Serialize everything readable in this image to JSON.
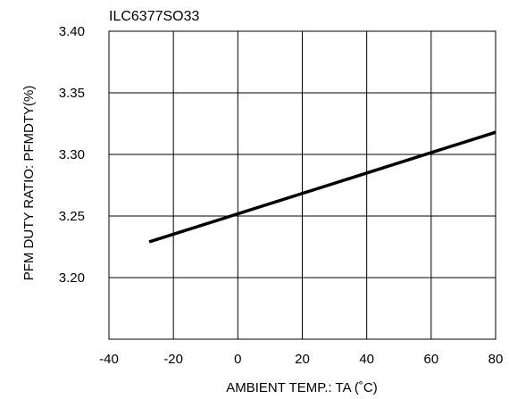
{
  "chart_data": {
    "type": "line",
    "title": "ILC6377SO33",
    "xlabel": "AMBIENT TEMP.: TA (˚C)",
    "ylabel": "PFM DUTY RATIO: PFMDTY(%)",
    "xlim": [
      -40,
      80
    ],
    "ylim": [
      3.15,
      3.4
    ],
    "x_ticks": [
      -40,
      -20,
      0,
      20,
      40,
      60,
      80
    ],
    "x_tick_labels": [
      "-40",
      "-20",
      "0",
      "20",
      "40",
      "60",
      "80"
    ],
    "y_ticks": [
      3.2,
      3.25,
      3.3,
      3.35,
      3.4
    ],
    "y_tick_labels": [
      "3.20",
      "3.25",
      "3.30",
      "3.35",
      "3.40"
    ],
    "x_gridlines": [
      -40,
      -20,
      0,
      20,
      40,
      60,
      80
    ],
    "y_gridlines": [
      3.15,
      3.2,
      3.25,
      3.3,
      3.35,
      3.4
    ],
    "grid": true,
    "series": [
      {
        "x": [
          -27.5,
          80
        ],
        "y": [
          3.229,
          3.318
        ]
      }
    ]
  }
}
